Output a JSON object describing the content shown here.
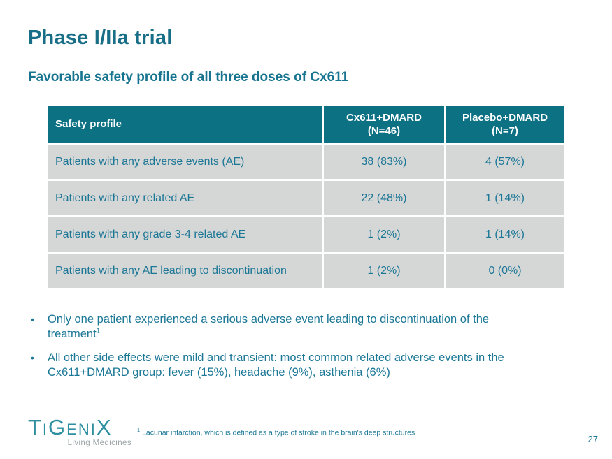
{
  "slide": {
    "title": "Phase I/IIa trial",
    "subtitle": "Favorable safety profile of all three doses of Cx611",
    "page_number": "27"
  },
  "table": {
    "col1_header": "Safety profile",
    "col2_header_line1": "Cx611+DMARD",
    "col2_header_line2": "(N=46)",
    "col3_header_line1": "Placebo+DMARD",
    "col3_header_line2": "(N=7)",
    "rows": [
      {
        "label": "Patients with any adverse events (AE)",
        "cx611": "38 (83%)",
        "placebo": "4 (57%)"
      },
      {
        "label": "Patients with any related AE",
        "cx611": "22 (48%)",
        "placebo": "1 (14%)"
      },
      {
        "label": "Patients with any grade 3-4 related AE",
        "cx611": "1 (2%)",
        "placebo": "1 (14%)"
      },
      {
        "label": "Patients with any AE leading to discontinuation",
        "cx611": "1 (2%)",
        "placebo": "0 (0%)"
      }
    ]
  },
  "bullets": [
    {
      "text": "Only one patient experienced a serious adverse event leading to discontinuation of the treatment",
      "sup": "1"
    },
    {
      "text": "All other side effects were mild and transient: most common related adverse events in the Cx611+DMARD group: fever (15%), headache (9%), asthenia (6%)",
      "sup": ""
    }
  ],
  "logo": {
    "wordmark": "TiGeniX",
    "tagline": "Living Medicines"
  },
  "footnote": {
    "marker": "1",
    "text": " Lacunar infarction, which is defined as a type of stroke in the brain's deep structures"
  },
  "colors": {
    "title_teal": "#186E87",
    "header_bg_teal": "#0D7184",
    "header_text": "#FFFFFF",
    "row_gray": "#D5D6D6",
    "body_text_teal": "#1B7796",
    "logo_teal": "#2E8FA0",
    "tagline_gray": "#9EA7AA"
  },
  "chart_data": {
    "type": "table",
    "title": "Safety profile",
    "columns": [
      "Safety profile",
      "Cx611+DMARD (N=46)",
      "Placebo+DMARD (N=7)"
    ],
    "rows": [
      [
        "Patients with any adverse events (AE)",
        "38 (83%)",
        "4 (57%)"
      ],
      [
        "Patients with any related AE",
        "22 (48%)",
        "1 (14%)"
      ],
      [
        "Patients with any grade 3-4 related AE",
        "1 (2%)",
        "1 (14%)"
      ],
      [
        "Patients with any AE leading to discontinuation",
        "1 (2%)",
        "0 (0%)"
      ]
    ]
  }
}
